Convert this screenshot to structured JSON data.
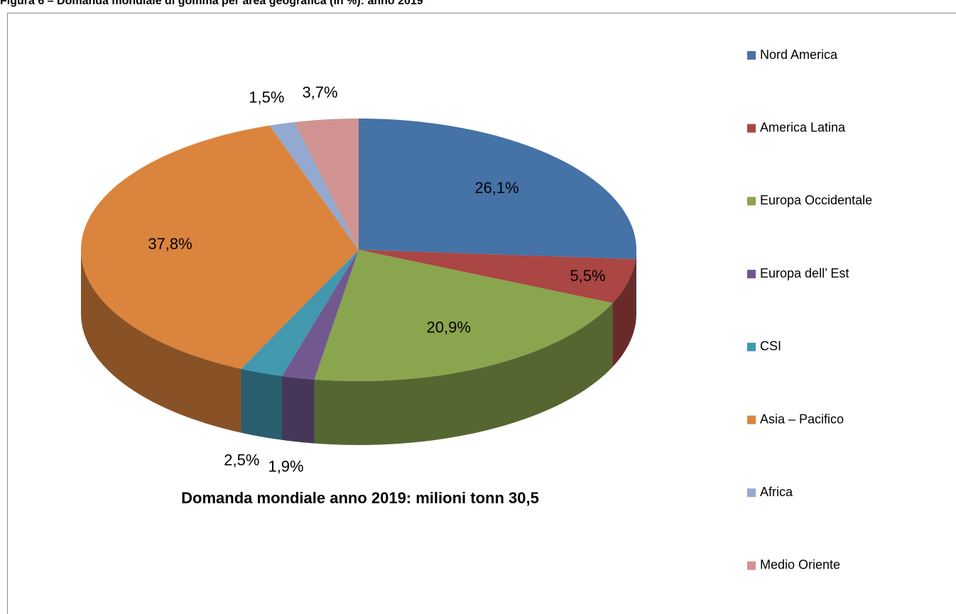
{
  "chart_data": {
    "type": "pie3d",
    "title": "Figura 6 – Domanda mondiale di gomma per area geografica (in %): anno 2019",
    "annotation": "Domanda mondiale anno 2019: milioni tonn 30,5",
    "categories": [
      "Nord America",
      "America Latina",
      "Europa Occidentale",
      "Europa dell’ Est",
      "CSI",
      "Asia – Pacifico",
      "Africa",
      "Medio Oriente"
    ],
    "values": [
      26.1,
      5.5,
      20.9,
      1.9,
      2.5,
      37.8,
      1.5,
      3.7
    ],
    "value_labels": [
      "26,1%",
      "5,5%",
      "20,9%",
      "1,9%",
      "2,5%",
      "37,8%",
      "1,5%",
      "3,7%"
    ],
    "colors": [
      "#4572a7",
      "#aa4643",
      "#89a54e",
      "#71588f",
      "#4198af",
      "#db843d",
      "#93a9cf",
      "#d19392"
    ],
    "legend": "right"
  }
}
